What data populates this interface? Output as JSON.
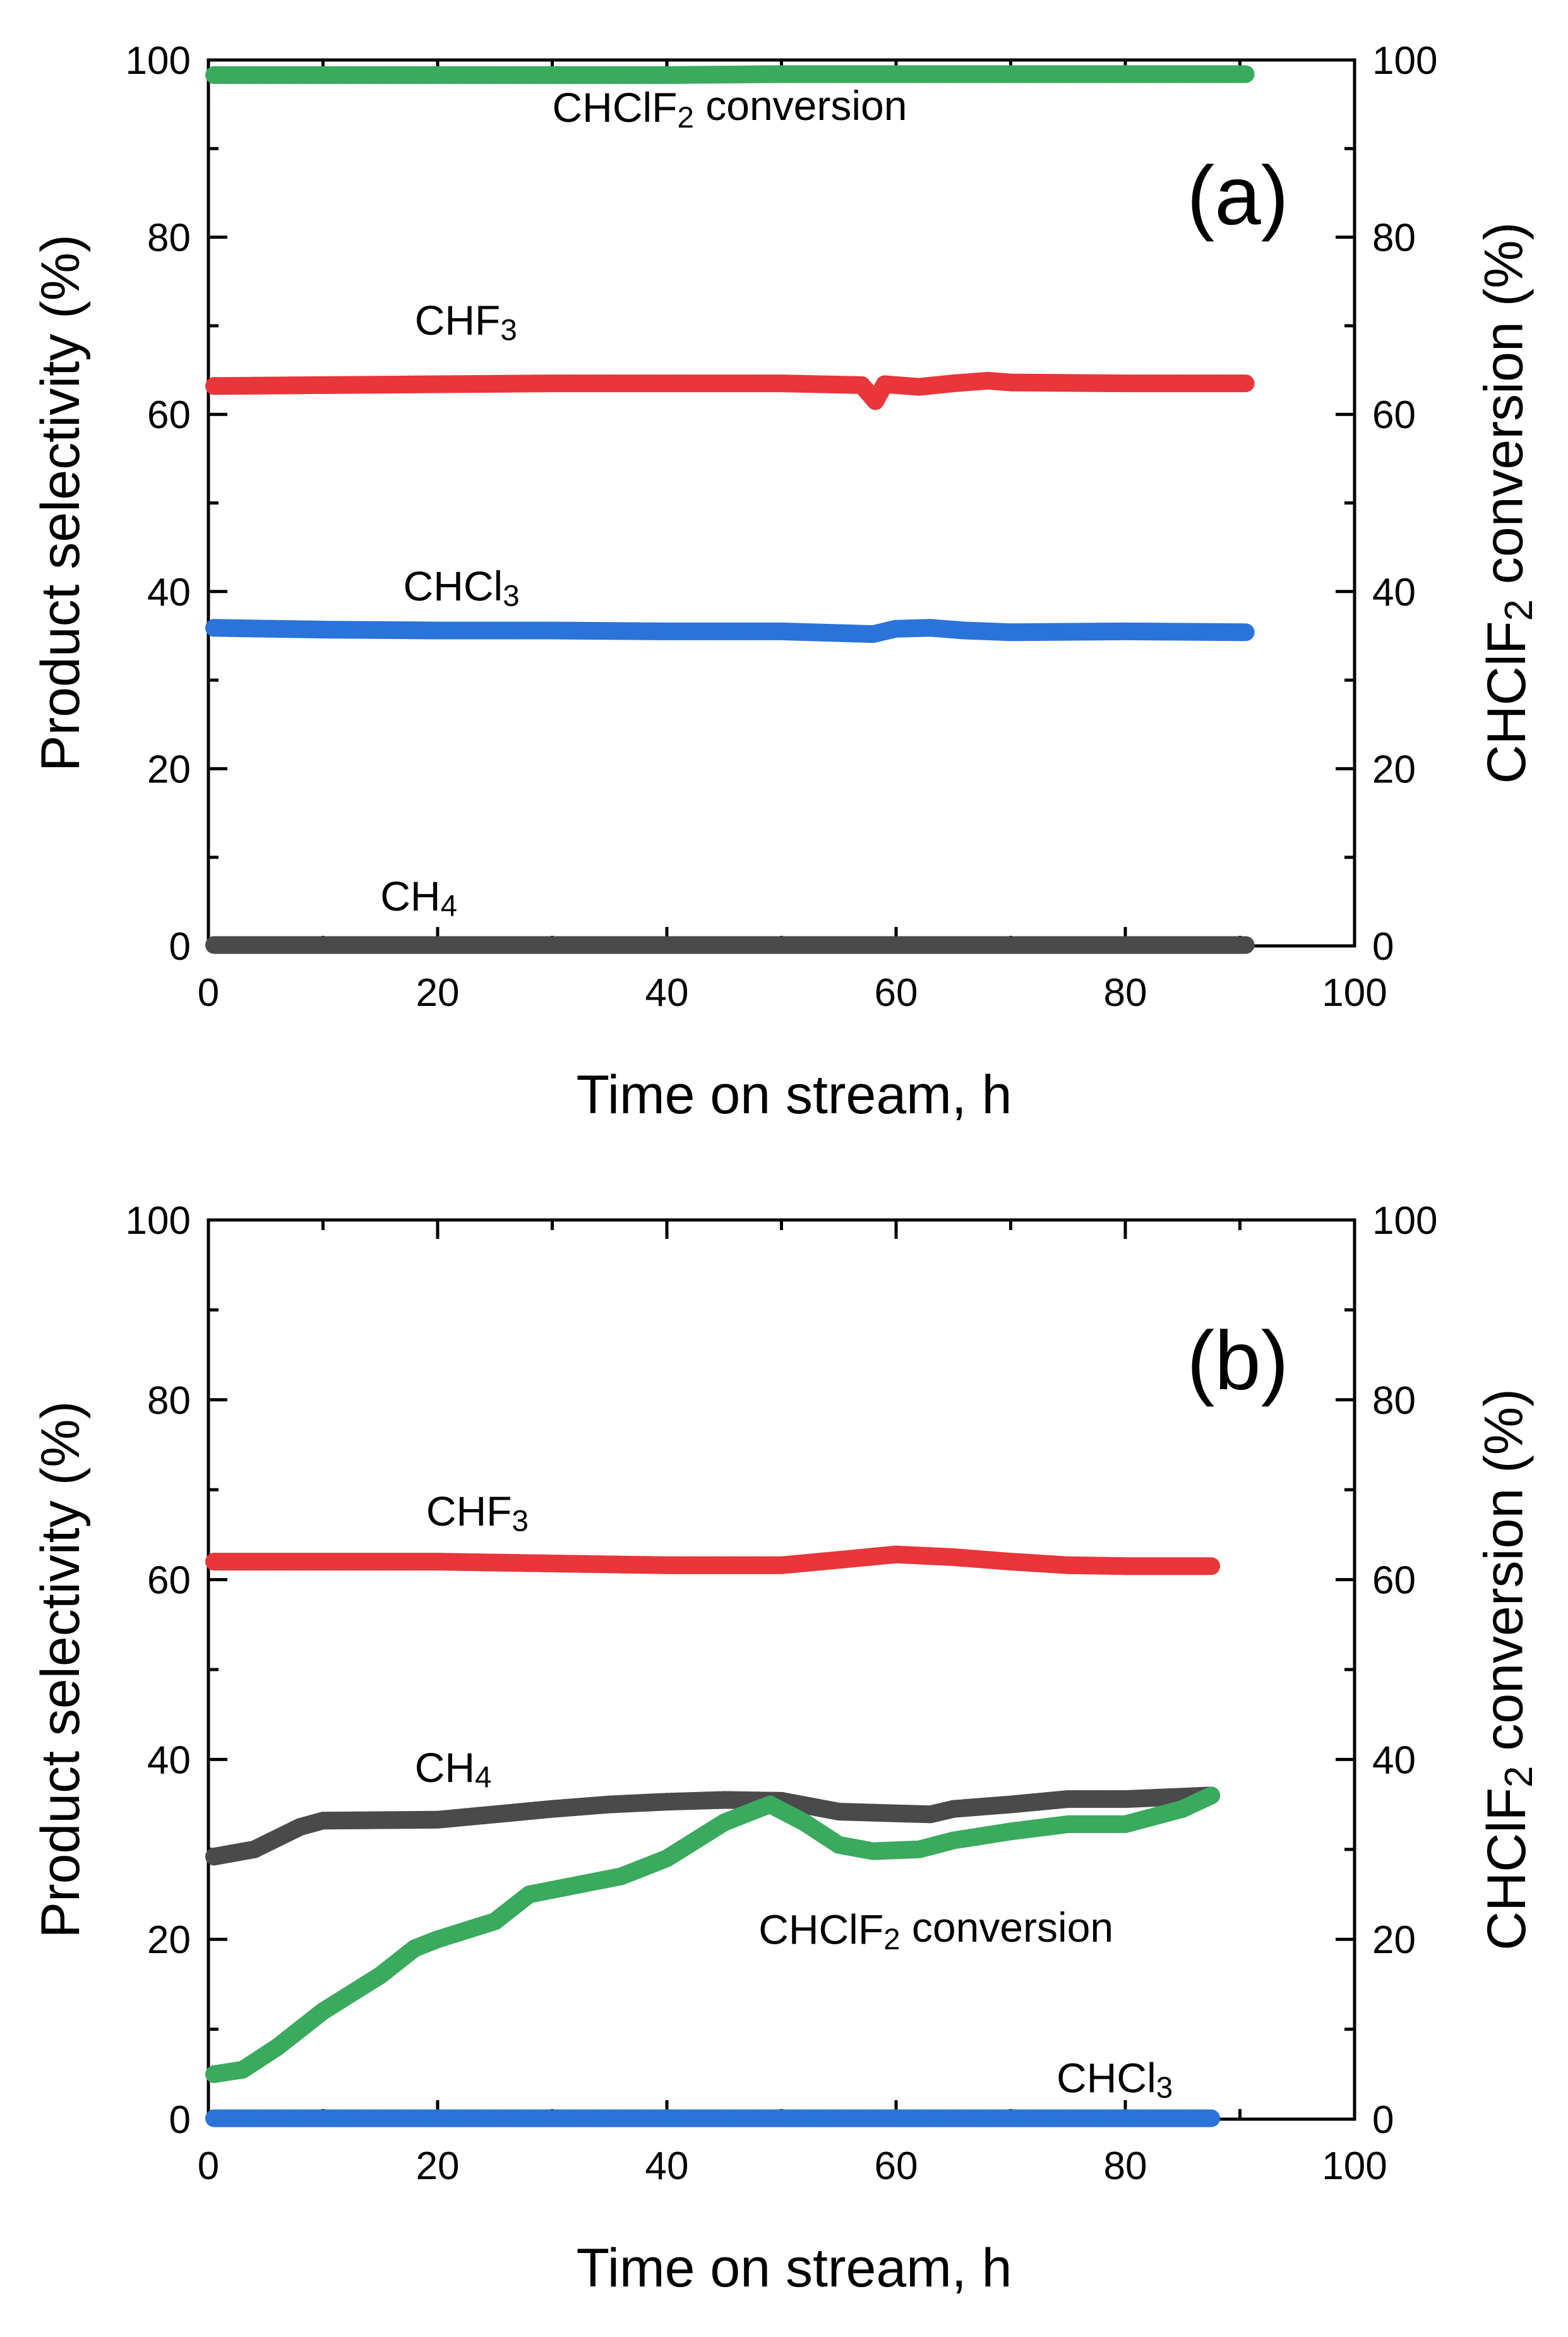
{
  "chart_data": [
    {
      "type": "line",
      "panel_label": "(a)",
      "xlabel": "Time on stream, h",
      "ylabel_left": "Product selectivity (%)",
      "ylabel_right": "CHClF2 conversion (%)",
      "xlim": [
        0,
        100
      ],
      "ylim": [
        0,
        100
      ],
      "y2lim": [
        0,
        100
      ],
      "xticks": [
        0,
        20,
        40,
        60,
        80,
        100
      ],
      "yticks": [
        0,
        20,
        40,
        60,
        80,
        100
      ],
      "grid": false,
      "legend": "none (series labeled inline)",
      "series": [
        {
          "name": "CHClF2 conversion",
          "axis": "right",
          "color": "#3aaa5e",
          "x": [
            0.5,
            10,
            20,
            30,
            40,
            50,
            60,
            70,
            80,
            90.5
          ],
          "y": [
            98.3,
            98.3,
            98.3,
            98.3,
            98.3,
            98.4,
            98.4,
            98.4,
            98.4,
            98.4
          ]
        },
        {
          "name": "CHF3",
          "axis": "left",
          "color": "#e8363a",
          "x": [
            0.5,
            10,
            20,
            30,
            40,
            50,
            57,
            58.2,
            59,
            62,
            65,
            68,
            70,
            80,
            90.5
          ],
          "y": [
            63.2,
            63.3,
            63.4,
            63.5,
            63.5,
            63.5,
            63.3,
            61.5,
            63.4,
            63.1,
            63.5,
            63.8,
            63.6,
            63.5,
            63.5
          ]
        },
        {
          "name": "CHCl3",
          "axis": "left",
          "color": "#2a73d9",
          "x": [
            0.5,
            10,
            20,
            30,
            40,
            50,
            58,
            60,
            63,
            66,
            70,
            80,
            90.5
          ],
          "y": [
            35.9,
            35.7,
            35.6,
            35.6,
            35.5,
            35.5,
            35.2,
            35.8,
            35.9,
            35.6,
            35.4,
            35.5,
            35.4
          ]
        },
        {
          "name": "CH4",
          "axis": "left",
          "color": "#4a4a4a",
          "x": [
            0.5,
            20,
            40,
            60,
            80,
            90.5
          ],
          "y": [
            0.1,
            0.1,
            0.1,
            0.1,
            0.1,
            0.1
          ]
        }
      ],
      "annotations": [
        {
          "text": "CHClF2 conversion",
          "x": 30,
          "y": 93
        },
        {
          "text": "CHF3",
          "x": 18,
          "y": 69
        },
        {
          "text": "CHCl3",
          "x": 17,
          "y": 39
        },
        {
          "text": "CH4",
          "x": 15,
          "y": 4
        }
      ]
    },
    {
      "type": "line",
      "panel_label": "(b)",
      "xlabel": "Time on stream, h",
      "ylabel_left": "Product selectivity (%)",
      "ylabel_right": "CHClF2 conversion (%)",
      "xlim": [
        0,
        100
      ],
      "ylim": [
        0,
        100
      ],
      "y2lim": [
        0,
        100
      ],
      "xticks": [
        0,
        20,
        40,
        60,
        80,
        100
      ],
      "yticks": [
        0,
        20,
        40,
        60,
        80,
        100
      ],
      "grid": false,
      "legend": "none (series labeled inline)",
      "series": [
        {
          "name": "CHF3",
          "axis": "left",
          "color": "#e8363a",
          "x": [
            0.5,
            10,
            20,
            30,
            40,
            50,
            55,
            60,
            65,
            70,
            75,
            80,
            87.5
          ],
          "y": [
            62.0,
            62.0,
            62.0,
            61.8,
            61.6,
            61.6,
            62.2,
            62.8,
            62.5,
            62.0,
            61.6,
            61.5,
            61.5
          ]
        },
        {
          "name": "CH4",
          "axis": "left",
          "color": "#4a4a4a",
          "x": [
            0.5,
            4,
            8,
            10,
            20,
            25,
            30,
            35,
            40,
            45,
            50,
            55,
            60,
            63,
            65,
            70,
            75,
            80,
            87.5
          ],
          "y": [
            29.2,
            30.0,
            32.5,
            33.2,
            33.3,
            33.9,
            34.5,
            35.0,
            35.3,
            35.5,
            35.4,
            34.2,
            34.0,
            33.9,
            34.5,
            35.0,
            35.6,
            35.6,
            36.0
          ]
        },
        {
          "name": "CHClF2 conversion",
          "axis": "right",
          "color": "#3aaa5e",
          "x": [
            0.5,
            3,
            6,
            10,
            15,
            18,
            20,
            25,
            28,
            32,
            36,
            40,
            45,
            49,
            52,
            55,
            58,
            62,
            65,
            70,
            75,
            80,
            85,
            87.5
          ],
          "y": [
            5.0,
            5.5,
            8.0,
            12.0,
            16.0,
            19.0,
            20.0,
            22.0,
            25.0,
            26.0,
            27.0,
            29.0,
            33.0,
            35.0,
            33.0,
            30.5,
            29.8,
            30.0,
            31.0,
            32.0,
            32.8,
            32.8,
            34.5,
            36.0
          ]
        },
        {
          "name": "CHCl3",
          "axis": "left",
          "color": "#2a73d9",
          "x": [
            0.5,
            20,
            40,
            60,
            80,
            87.5
          ],
          "y": [
            0.1,
            0.1,
            0.1,
            0.1,
            0.1,
            0.1
          ]
        }
      ],
      "annotations": [
        {
          "text": "CHF3",
          "x": 19,
          "y": 66
        },
        {
          "text": "CH4",
          "x": 18,
          "y": 37.5
        },
        {
          "text": "CHClF2 conversion",
          "x": 48,
          "y": 19.5
        },
        {
          "text": "CHCl3",
          "x": 74,
          "y": 3
        }
      ]
    }
  ]
}
